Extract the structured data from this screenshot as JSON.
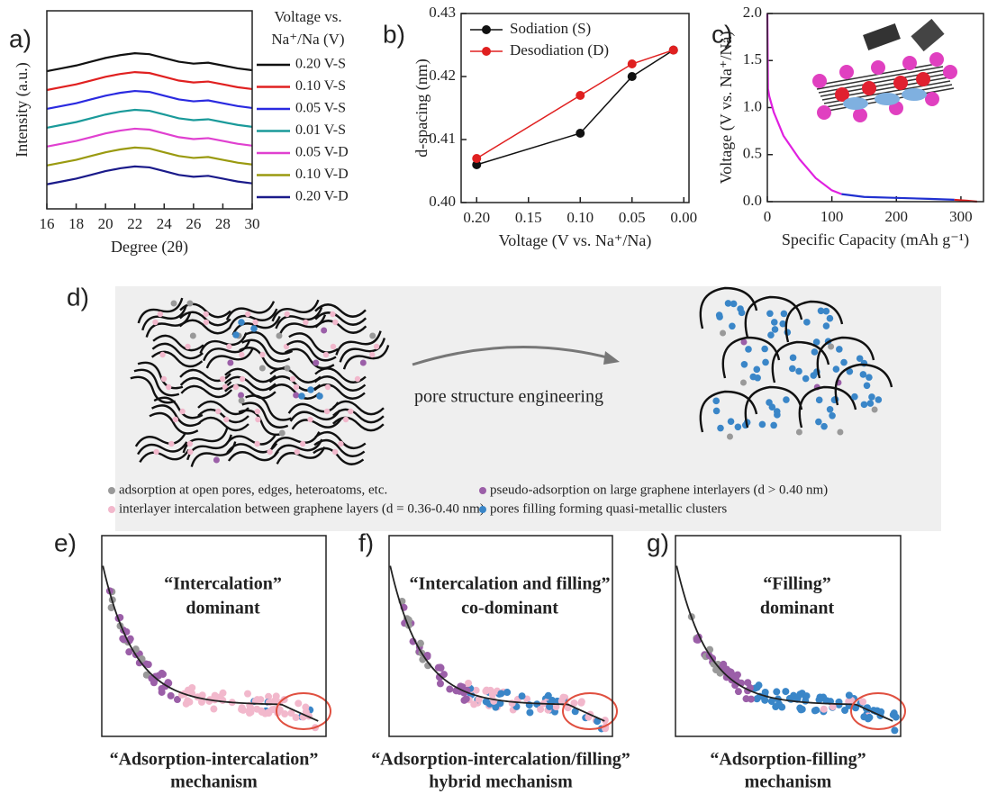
{
  "chart_data": [
    {
      "type": "line",
      "label": "a)",
      "xlabel": "Degree (2θ)",
      "ylabel": "Intensity (a.u.)",
      "x": [
        16,
        17,
        18,
        19,
        20,
        21,
        22,
        23,
        24,
        25,
        26,
        27,
        28,
        29,
        30
      ],
      "xlim": [
        16,
        30
      ],
      "xticks": [
        16,
        18,
        20,
        22,
        24,
        26,
        28,
        30
      ],
      "ylim": [
        -1,
        9.5
      ],
      "legend": "right",
      "legend_title": [
        "Voltage vs.",
        "Na⁺/Na (V)"
      ],
      "series": [
        {
          "name": "0.20 V-S",
          "color": "#111111",
          "values": [
            6.3,
            6.45,
            6.6,
            6.8,
            7.0,
            7.15,
            7.25,
            7.2,
            7.0,
            6.8,
            6.7,
            6.75,
            6.6,
            6.45,
            6.35
          ]
        },
        {
          "name": "0.10 V-S",
          "color": "#e02020",
          "values": [
            5.3,
            5.45,
            5.6,
            5.8,
            6.0,
            6.15,
            6.25,
            6.2,
            6.0,
            5.8,
            5.7,
            5.75,
            5.6,
            5.45,
            5.35
          ]
        },
        {
          "name": "0.05 V-S",
          "color": "#2a2ae0",
          "values": [
            4.3,
            4.45,
            4.6,
            4.8,
            5.0,
            5.15,
            5.25,
            5.2,
            5.0,
            4.8,
            4.7,
            4.75,
            4.6,
            4.45,
            4.35
          ]
        },
        {
          "name": "0.01 V-S",
          "color": "#1a9a9a",
          "values": [
            3.3,
            3.45,
            3.6,
            3.8,
            4.0,
            4.15,
            4.25,
            4.2,
            4.0,
            3.8,
            3.7,
            3.75,
            3.6,
            3.45,
            3.35
          ]
        },
        {
          "name": "0.05 V-D",
          "color": "#e040d0",
          "values": [
            2.3,
            2.45,
            2.6,
            2.8,
            3.0,
            3.15,
            3.25,
            3.2,
            3.0,
            2.8,
            2.7,
            2.75,
            2.6,
            2.45,
            2.35
          ]
        },
        {
          "name": "0.10 V-D",
          "color": "#9a9a10",
          "values": [
            1.3,
            1.45,
            1.6,
            1.8,
            2.0,
            2.15,
            2.25,
            2.2,
            2.0,
            1.8,
            1.7,
            1.75,
            1.6,
            1.45,
            1.35
          ]
        },
        {
          "name": "0.20 V-D",
          "color": "#1a1a8a",
          "values": [
            0.3,
            0.45,
            0.6,
            0.8,
            1.0,
            1.15,
            1.25,
            1.2,
            1.0,
            0.8,
            0.7,
            0.75,
            0.6,
            0.45,
            0.35
          ]
        }
      ]
    },
    {
      "type": "line",
      "label": "b)",
      "xlabel": "Voltage (V vs. Na⁺/Na)",
      "ylabel": "d-spacing (nm)",
      "x": [
        0.2,
        0.1,
        0.05,
        0.01
      ],
      "xlim": [
        0.215,
        -0.005
      ],
      "xticks": [
        {
          "value": 0.2,
          "label": "0.20"
        },
        0.15,
        {
          "value": 0.1,
          "label": "0.10"
        },
        0.05,
        {
          "value": 0,
          "label": "0.00"
        }
      ],
      "ylim": [
        0.4,
        0.43
      ],
      "yticks": [
        {
          "value": 0.4,
          "label": "0.40"
        },
        0.41,
        0.42,
        0.43
      ],
      "markers": true,
      "legend": "upper left",
      "series": [
        {
          "name": "Sodiation (S)",
          "color": "#111111",
          "values": [
            0.406,
            0.411,
            0.42,
            0.4242
          ]
        },
        {
          "name": "Desodiation (D)",
          "color": "#e02020",
          "values": [
            0.407,
            0.417,
            0.422,
            0.4242
          ]
        }
      ]
    },
    {
      "type": "line",
      "label": "c)",
      "xlabel": "Specific Capacity (mAh g⁻¹)",
      "ylabel": "Voltage (V vs. Na⁺/Na)",
      "xlim": [
        0,
        335
      ],
      "xticks": [
        0,
        100,
        200,
        300
      ],
      "ylim": [
        0,
        2.0
      ],
      "yticks": [
        {
          "value": 0,
          "label": "0.0"
        },
        0.5,
        {
          "value": 1,
          "label": "1.0"
        },
        1.5,
        {
          "value": 2,
          "label": "2.0"
        }
      ],
      "series": [
        {
          "color": "#e020e0",
          "x": [
            0,
            1,
            3,
            10,
            25,
            50,
            75,
            100,
            115
          ],
          "values": [
            2.0,
            1.2,
            1.12,
            0.95,
            0.7,
            0.45,
            0.25,
            0.12,
            0.08
          ]
        },
        {
          "color": "#2030d0",
          "x": [
            115,
            150,
            200,
            250,
            290
          ],
          "values": [
            0.08,
            0.05,
            0.04,
            0.03,
            0.02
          ]
        },
        {
          "color": "#e02020",
          "x": [
            290,
            310,
            325
          ],
          "values": [
            0.02,
            0.01,
            0.0
          ]
        }
      ]
    }
  ],
  "diagram": {
    "label": "d)",
    "arrow_text": "pore structure engineering",
    "legend": [
      {
        "color": "#999999",
        "text": "adsorption at open pores, edges, heteroatoms, etc."
      },
      {
        "color": "#9b5fa8",
        "text": "pseudo-adsorption on large graphene interlayers (d >  0.40 nm)"
      },
      {
        "color": "#f2b8cc",
        "text": "interlayer intercalation between graphene layers (d =  0.36-0.40 nm)"
      },
      {
        "color": "#3a86c8",
        "text": "pores filling  forming quasi-metallic clusters"
      }
    ]
  },
  "mechanisms": [
    {
      "label": "e)",
      "title": [
        "“Intercalation”",
        "dominant"
      ],
      "caption": [
        "“Adsorption-intercalation”",
        "mechanism"
      ]
    },
    {
      "label": "f)",
      "title": [
        "“Intercalation and filling”",
        "co-dominant"
      ],
      "caption": [
        "“Adsorption-intercalation/filling”",
        "hybrid mechanism"
      ]
    },
    {
      "label": "g)",
      "title": [
        "“Filling”",
        "dominant"
      ],
      "caption": [
        "“Adsorption-filling”",
        "mechanism"
      ]
    }
  ]
}
